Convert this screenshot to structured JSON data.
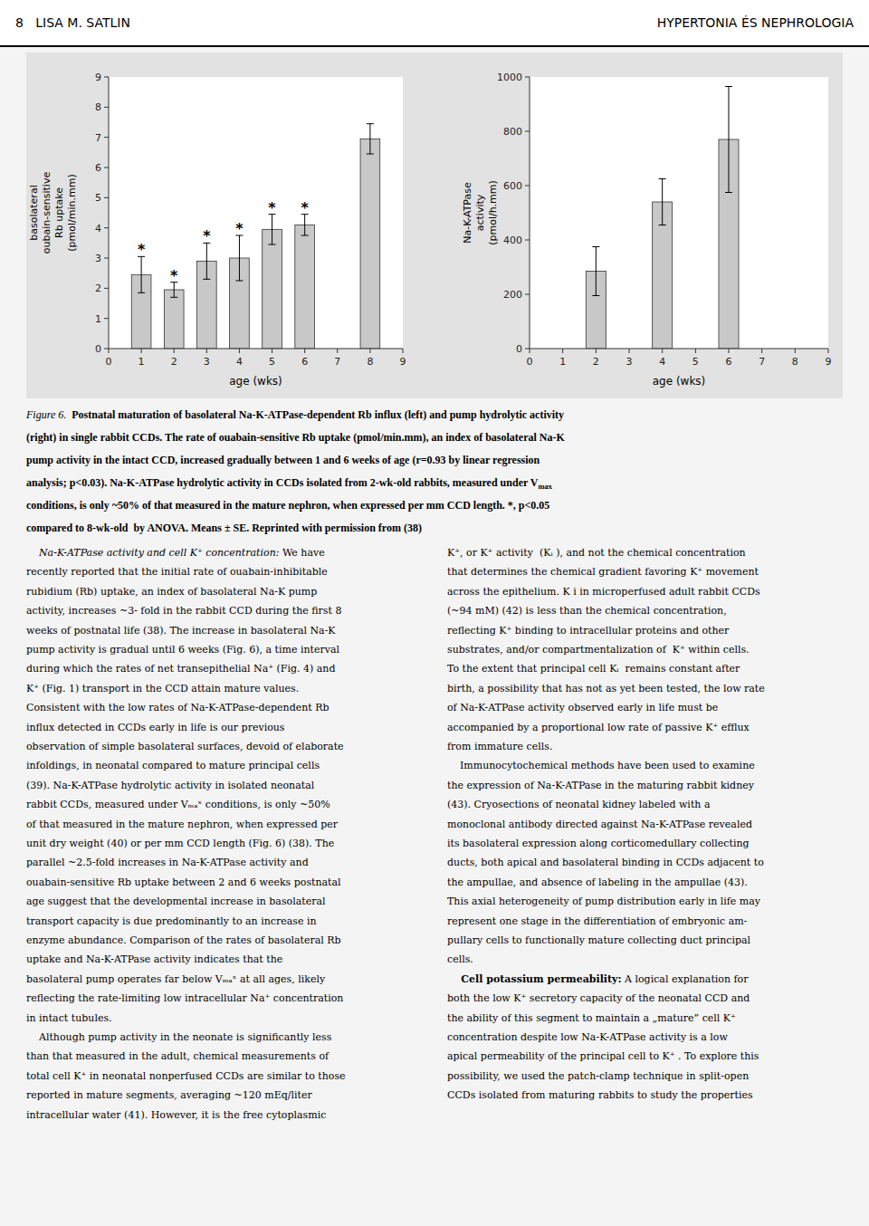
{
  "chart_data": [
    {
      "type": "bar",
      "x": [
        1,
        2,
        3,
        4,
        5,
        6,
        8
      ],
      "values": [
        2.45,
        1.95,
        2.9,
        3.0,
        3.95,
        4.1,
        6.95
      ],
      "errors": [
        0.6,
        0.25,
        0.6,
        0.75,
        0.5,
        0.35,
        0.5
      ],
      "annotations": [
        "*",
        "*",
        "*",
        "*",
        "*",
        "*",
        null
      ],
      "color": "#c8c8c8",
      "xlabel": "age (wks)",
      "ylabel": "basolateral\noubain-sensitive\nRb uptake\n(pmol/min.mm)",
      "xlim": [
        0,
        9
      ],
      "ylim": [
        0,
        9
      ],
      "xticks": [
        0,
        1,
        2,
        3,
        4,
        5,
        6,
        7,
        8,
        9
      ],
      "yticks": [
        0,
        1,
        2,
        3,
        4,
        5,
        6,
        7,
        8,
        9
      ],
      "grid": false
    },
    {
      "type": "bar",
      "x": [
        2,
        4,
        6
      ],
      "values": [
        285,
        540,
        770
      ],
      "errors": [
        90,
        85,
        195
      ],
      "color": "#c8c8c8",
      "xlabel": "age (wks)",
      "ylabel": "Na-K-ATPase\nactivity\n(pmol/h.mm)",
      "xlim": [
        0,
        9
      ],
      "ylim": [
        0,
        1000
      ],
      "xticks": [
        0,
        1,
        2,
        3,
        4,
        5,
        6,
        7,
        8,
        9
      ],
      "yticks": [
        0,
        200,
        400,
        600,
        800,
        1000
      ],
      "grid": false
    }
  ],
  "page": {
    "header_left": "8   LISA M. SATLIN",
    "header_right": "HYPERTONIA ÉS NEPHROLOGIA",
    "caption_label": "Figure 6.",
    "caption": [
      "Postnatal maturation of basolateral Na-K-ATPase-dependent Rb influx (left) and pump hydrolytic activity",
      "(right) in single rabbit CCDs. The rate of ouabain-sensitive Rb uptake (pmol/min.mm), an index of basolateral Na-K",
      "pump activity in the intact CCD, increased gradually between 1 and 6 weeks of age (r=0.93 by linear regression",
      "analysis; p<0.03). Na-K-ATPase hydrolytic activity in CCDs isolated from 2-wk-old rabbits, measured under V",
      "conditions, is only ~50% of that measured in the mature nephron, when expressed per mm CCD length. *, p<0.05",
      "compared to 8-wk-old  by ANOVA. Means ± SE. Reprinted with permission from (38)"
    ],
    "caption_subscript": "max",
    "body_left": [
      {
        "heading": "    Na-K-ATPase activity and cell K⁺ concentration:",
        "text": " We have"
      },
      "recently reported that the initial rate of ouabain-inhibitable",
      "rubidium (Rb) uptake, an index of basolateral Na-K pump",
      "activity, increases ~3- fold in the rabbit CCD during the first 8",
      "weeks of postnatal life (38). The increase in basolateral Na-K",
      "pump activity is gradual until 6 weeks (Fig. 6), a time interval",
      "during which the rates of net transepithelial Na⁺ (Fig. 4) and",
      "K⁺ (Fig. 1) transport in the CCD attain mature values.",
      "Consistent with the low rates of Na-K-ATPase-dependent Rb",
      "influx detected in CCDs early in life is our previous",
      "observation of simple basolateral surfaces, devoid of elaborate",
      "infoldings, in neonatal compared to mature principal cells",
      "(39). Na-K-ATPase hydrolytic activity in isolated neonatal",
      "rabbit CCDs, measured under Vₘₐˣ conditions, is only ~50%",
      "of that measured in the mature nephron, when expressed per",
      "unit dry weight (40) or per mm CCD length (Fig. 6) (38). The",
      "parallel ~2.5-fold increases in Na-K-ATPase activity and",
      "ouabain-sensitive Rb uptake between 2 and 6 weeks postnatal",
      "age suggest that the developmental increase in basolateral",
      "transport capacity is due predominantly to an increase in",
      "enzyme abundance. Comparison of the rates of basolateral Rb",
      "uptake and Na-K-ATPase activity indicates that the",
      "basolateral pump operates far below Vₘₐˣ at all ages, likely",
      "reflecting the rate-limiting low intracellular Na⁺ concentration",
      "in intact tubules.",
      "    Although pump activity in the neonate is significantly less",
      "than that measured in the adult, chemical measurements of",
      "total cell K⁺ in neonatal nonperfused CCDs are similar to those",
      "reported in mature segments, averaging ~120 mEq/liter",
      "intracellular water (41). However, it is the free cytoplasmic"
    ],
    "body_right": [
      "K⁺, or K⁺ activity  (Kᵢ ), and not the chemical concentration",
      "that determines the chemical gradient favoring K⁺ movement",
      "across the epithelium. K i in microperfused adult rabbit CCDs",
      "(~94 mM) (42) is less than the chemical concentration,",
      "reflecting K⁺ binding to intracellular proteins and other",
      "substrates, and/or compartmentalization of  K⁺ within cells.",
      "To the extent that principal cell Kᵢ  remains constant after",
      "birth, a possibility that has not as yet been tested, the low rate",
      "of Na-K-ATPase activity observed early in life must be",
      "accompanied by a proportional low rate of passive K⁺ efflux",
      "from immature cells.",
      "    Immunocytochemical methods have been used to examine",
      "the expression of Na-K-ATPase in the maturing rabbit kidney",
      "(43). Cryosections of neonatal kidney labeled with a",
      "monoclonal antibody directed against Na-K-ATPase revealed",
      "its basolateral expression along corticomedullary collecting",
      "ducts, both apical and basolateral binding in CCDs adjacent to",
      "the ampullae, and absence of labeling in the ampullae (43).",
      "This axial heterogeneity of pump distribution early in life may",
      "represent one stage in the differentiation of embryonic am-",
      "pullary cells to functionally mature collecting duct principal",
      "cells.",
      {
        "heading": "    Cell potassium permeability:",
        "text": " A logical explanation for"
      },
      "both the low K⁺ secretory capacity of the neonatal CCD and",
      "the ability of this segment to maintain a „mature” cell K⁺",
      "concentration despite low Na-K-ATPase activity is a low",
      "apical permeability of the principal cell to K⁺ . To explore this",
      "possibility, we used the patch-clamp technique in split-open",
      "CCDs isolated from maturing rabbits to study the properties"
    ]
  }
}
